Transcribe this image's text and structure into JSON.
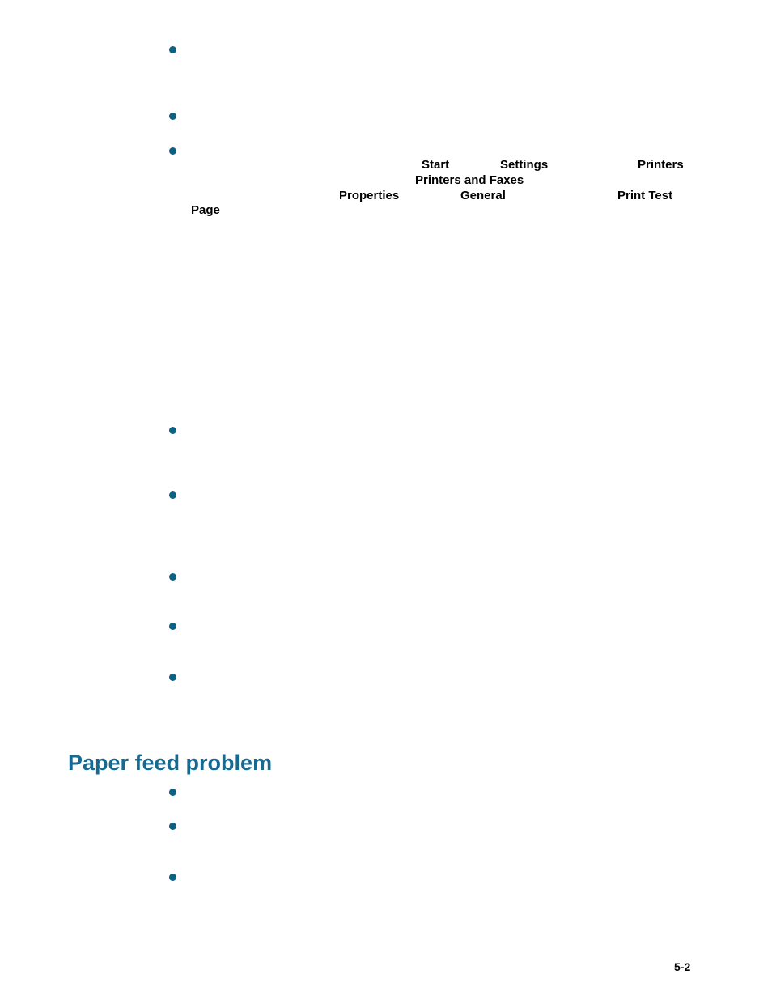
{
  "document": {
    "section_heading": "Paper feed problem",
    "page_number": "5-2",
    "bold_terms": {
      "start": "Start",
      "settings": "Settings",
      "printers": "Printers",
      "printers_and_faxes": "Printers and Faxes",
      "properties": "Properties",
      "general": "General",
      "print_test": "Print Test",
      "page": "Page"
    },
    "bullet_groups": [
      {
        "name": "top",
        "count": 3
      },
      {
        "name": "middle",
        "count": 5
      },
      {
        "name": "bottom",
        "count": 3
      }
    ],
    "colors": {
      "heading_teal": "#166a91",
      "bullet_teal": "#0c6183",
      "body_text": "#000000",
      "background": "#ffffff"
    }
  }
}
